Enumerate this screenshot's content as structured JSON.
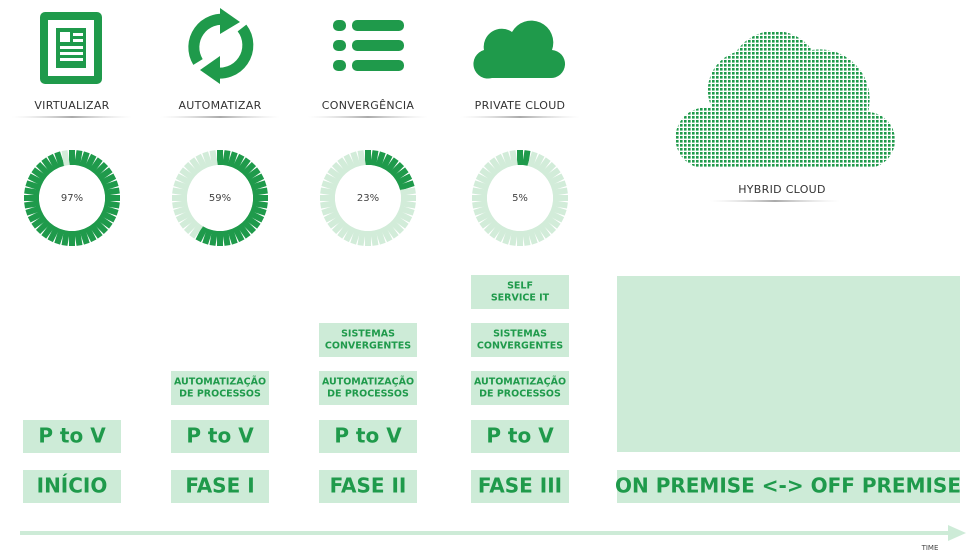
{
  "columns": [
    {
      "label": "VIRTUALIZAR",
      "gauge": {
        "value": 97,
        "label": "97%"
      },
      "base": "P to V",
      "steps": [],
      "phase": "INÍCIO"
    },
    {
      "label": "AUTOMATIZAR",
      "gauge": {
        "value": 59,
        "label": "59%"
      },
      "base": "P to V",
      "steps": [
        [
          "AUTOMATIZAÇÃO",
          "DE PROCESSOS"
        ]
      ],
      "phase": "FASE I"
    },
    {
      "label": "CONVERGÊNCIA",
      "gauge": {
        "value": 23,
        "label": "23%"
      },
      "base": "P to V",
      "steps": [
        [
          "AUTOMATIZAÇÃO",
          "DE PROCESSOS"
        ],
        [
          "SISTEMAS",
          "CONVERGENTES"
        ]
      ],
      "phase": "FASE II"
    },
    {
      "label": "PRIVATE CLOUD",
      "gauge": {
        "value": 5,
        "label": "5%"
      },
      "base": "P to V",
      "steps": [
        [
          "AUTOMATIZAÇÃO",
          "DE PROCESSOS"
        ],
        [
          "SISTEMAS",
          "CONVERGENTES"
        ],
        [
          "SELF",
          "SERVICE IT"
        ]
      ],
      "phase": "FASE III"
    }
  ],
  "hybrid": {
    "label": "HYBRID CLOUD",
    "phase": "ON PREMISE <-> OFF PREMISE"
  },
  "axis_label": "TIME"
}
